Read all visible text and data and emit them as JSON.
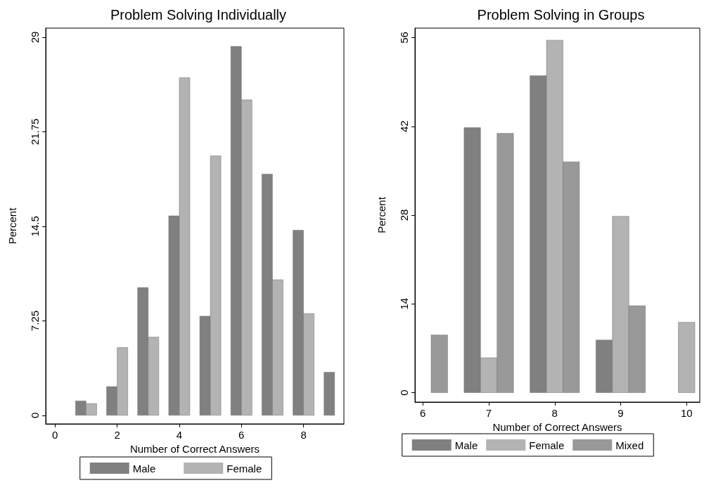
{
  "chart_data": [
    {
      "type": "bar",
      "title": "Problem Solving Individually",
      "xlabel": "Number of Correct Answers",
      "ylabel": "Percent",
      "xlim": [
        -0.3,
        9.3
      ],
      "xticks": [
        0,
        2,
        4,
        6,
        8
      ],
      "ylim": [
        -0.66,
        29.7
      ],
      "yticks": [
        0,
        7.25,
        14.5,
        21.75,
        29
      ],
      "grid": false,
      "legend": "bottom",
      "series": [
        {
          "name": "Male",
          "color": "#808080",
          "x": [
            0.83,
            1.83,
            2.83,
            3.83,
            4.83,
            5.83,
            6.83,
            7.83,
            8.83
          ],
          "values": [
            1.1,
            2.2,
            9.8,
            15.3,
            7.6,
            28.3,
            18.5,
            14.2,
            3.3
          ]
        },
        {
          "name": "Female",
          "color": "#b3b3b3",
          "x": [
            1.17,
            2.17,
            3.17,
            4.17,
            5.17,
            6.17,
            7.17,
            8.17
          ],
          "values": [
            0.9,
            5.2,
            6.0,
            25.9,
            19.9,
            24.2,
            10.4,
            7.8
          ]
        }
      ]
    },
    {
      "type": "bar",
      "title": "Problem Solving in Groups",
      "xlabel": "Number of Correct Answers",
      "ylabel": "Percent",
      "xlim": [
        5.88,
        10.2
      ],
      "xticks": [
        6,
        7,
        8,
        9,
        10
      ],
      "ylim": [
        -1.5,
        57.5
      ],
      "yticks": [
        0,
        14,
        28,
        42,
        56
      ],
      "grid": false,
      "legend": "bottom",
      "series": [
        {
          "name": "Male",
          "color": "#808080",
          "x": [
            6.75,
            7.75,
            8.75
          ],
          "values": [
            41.8,
            50.0,
            8.3
          ]
        },
        {
          "name": "Female",
          "color": "#b3b3b3",
          "x": [
            7,
            8,
            9,
            10
          ],
          "values": [
            5.5,
            55.6,
            27.8,
            11.1
          ]
        },
        {
          "name": "Mixed",
          "color": "#999999",
          "x": [
            6.25,
            7.25,
            8.25,
            9.25
          ],
          "values": [
            9.1,
            40.9,
            36.4,
            13.7
          ]
        }
      ]
    }
  ]
}
